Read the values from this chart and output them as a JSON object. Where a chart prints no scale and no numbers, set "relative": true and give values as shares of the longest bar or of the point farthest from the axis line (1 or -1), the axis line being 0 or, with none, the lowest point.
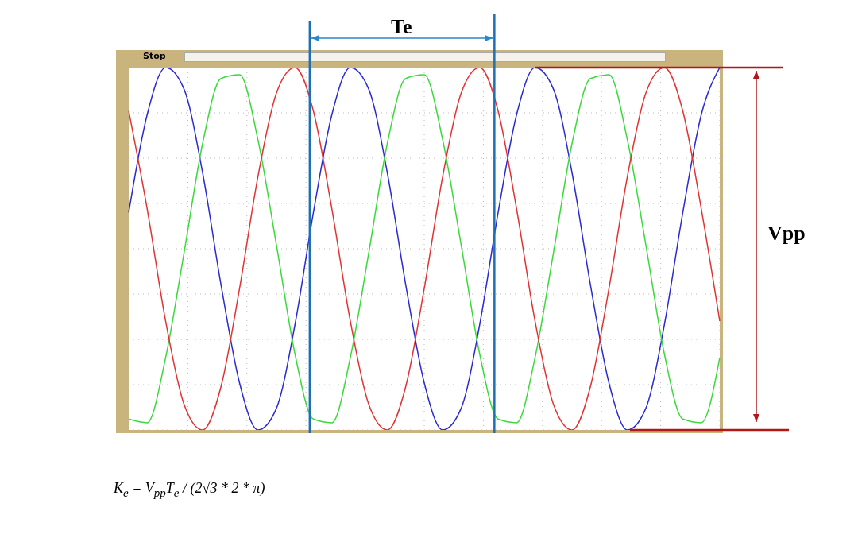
{
  "chart_data": {
    "type": "line",
    "relative": true,
    "grid": true,
    "ref_lines": [
      {
        "axis": "y",
        "value": 1,
        "color": "#b01818"
      },
      {
        "axis": "y",
        "value": 0,
        "color": "#b01818"
      }
    ],
    "marker": "none",
    "line_style": "solid",
    "categories": [
      null,
      null,
      null,
      null,
      null,
      null,
      null,
      null,
      null,
      null,
      null,
      null,
      null,
      null,
      null,
      null,
      null,
      null,
      null,
      null,
      null,
      null,
      null,
      null,
      null,
      null,
      null,
      null,
      null,
      null,
      null,
      null,
      null
    ],
    "series": [
      {
        "color": "#2b2bd0",
        "values": [
          0.6,
          0.87,
          1.0,
          0.94,
          0.71,
          0.4,
          0.13,
          0.0,
          0.06,
          0.29,
          0.6,
          0.87,
          1.0,
          0.94,
          0.71,
          0.4,
          0.13,
          0.0,
          0.06,
          0.29,
          0.6,
          0.87,
          1.0,
          0.94,
          0.71,
          0.4,
          0.13,
          0.0,
          0.06,
          0.29,
          0.6,
          0.87,
          1.0
        ]
      },
      {
        "color": "#3cd83c",
        "values": [
          0.03,
          0.02,
          0.2,
          0.49,
          0.79,
          0.97,
          0.98,
          0.8,
          0.51,
          0.21,
          0.03,
          0.02,
          0.2,
          0.49,
          0.79,
          0.97,
          0.98,
          0.8,
          0.51,
          0.21,
          0.03,
          0.02,
          0.2,
          0.49,
          0.79,
          0.97,
          0.98,
          0.8,
          0.51,
          0.21,
          0.03,
          0.02,
          0.2
        ]
      },
      {
        "color": "#e03434",
        "values": [
          0.88,
          0.61,
          0.3,
          0.07,
          0.0,
          0.12,
          0.39,
          0.7,
          0.93,
          1.0,
          0.88,
          0.61,
          0.3,
          0.07,
          0.0,
          0.12,
          0.39,
          0.7,
          0.93,
          1.0,
          0.88,
          0.61,
          0.3,
          0.07,
          0.0,
          0.12,
          0.39,
          0.7,
          0.93,
          1.0,
          0.88,
          0.61,
          0.3
        ]
      }
    ],
    "annotations": [
      "Te",
      "Vpp",
      "Stop",
      "K$_{e}$ = V$_{pp}$T$_{e}$ / (2√3 * 2 * π)"
    ]
  }
}
